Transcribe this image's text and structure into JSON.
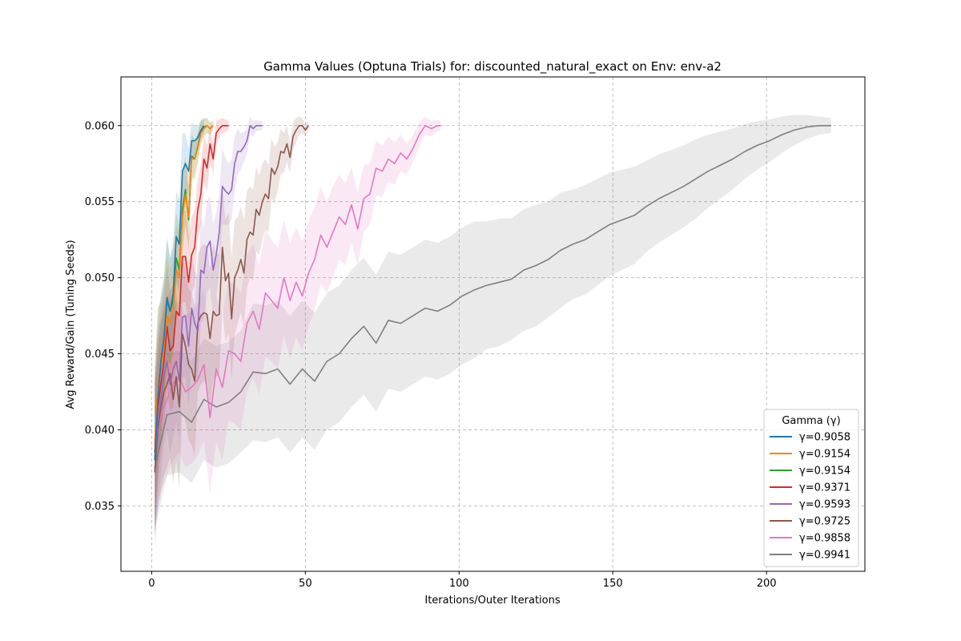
{
  "chart_data": {
    "type": "line",
    "title": "Gamma Values (Optuna Trials) for: discounted_natural_exact on Env: env-a2",
    "xlabel": "Iterations/Outer Iterations",
    "ylabel": "Avg Reward/Gain (Tuning Seeds)",
    "xlim": [
      -10,
      232
    ],
    "ylim": [
      0.0307,
      0.0632
    ],
    "xticks": [
      0,
      50,
      100,
      150,
      200
    ],
    "yticks": [
      0.035,
      0.04,
      0.045,
      0.05,
      0.055,
      0.06
    ],
    "ytick_labels": [
      "0.035",
      "0.040",
      "0.045",
      "0.050",
      "0.055",
      "0.060"
    ],
    "grid": true,
    "legend": {
      "title": "Gamma (γ)",
      "placement": "lower-right"
    },
    "series": [
      {
        "name": "γ=0.9058",
        "color": "#1f77b4",
        "x": [
          1,
          2,
          3,
          4,
          5,
          6,
          7,
          8,
          9,
          10,
          11,
          12,
          13,
          14,
          15,
          16,
          17
        ],
        "y": [
          0.038,
          0.042,
          0.0445,
          0.046,
          0.0487,
          0.0478,
          0.049,
          0.0527,
          0.0522,
          0.057,
          0.0575,
          0.057,
          0.059,
          0.059,
          0.0592,
          0.0597,
          0.06
        ],
        "band": [
          0.005,
          0.005,
          0.0045,
          0.004,
          0.004,
          0.0035,
          0.0035,
          0.003,
          0.003,
          0.0025,
          0.002,
          0.0015,
          0.0012,
          0.001,
          0.0008,
          0.0006,
          0.0005
        ]
      },
      {
        "name": "γ=0.9154",
        "color": "#ff7f0e",
        "x": [
          1,
          2,
          3,
          4,
          5,
          6,
          7,
          8,
          9,
          10,
          11,
          12,
          13,
          14,
          15,
          16,
          17,
          18,
          19,
          20
        ],
        "y": [
          0.039,
          0.043,
          0.044,
          0.0455,
          0.0475,
          0.047,
          0.048,
          0.0505,
          0.05,
          0.054,
          0.0555,
          0.054,
          0.0578,
          0.0578,
          0.0585,
          0.0595,
          0.0598,
          0.06,
          0.0598,
          0.06
        ],
        "band": [
          0.005,
          0.005,
          0.0045,
          0.004,
          0.004,
          0.0035,
          0.0035,
          0.003,
          0.003,
          0.0025,
          0.0022,
          0.002,
          0.0015,
          0.0012,
          0.001,
          0.0008,
          0.0006,
          0.0005,
          0.0004,
          0.0003
        ]
      },
      {
        "name": "γ=0.9154",
        "color": "#2ca02c",
        "x": [
          1,
          2,
          3,
          4,
          5,
          6,
          7,
          8,
          9,
          10,
          11,
          12,
          13,
          14,
          15,
          16,
          17,
          18,
          19,
          20
        ],
        "y": [
          0.039,
          0.043,
          0.044,
          0.046,
          0.0485,
          0.0478,
          0.0485,
          0.0513,
          0.0505,
          0.0545,
          0.0558,
          0.0538,
          0.058,
          0.0578,
          0.0586,
          0.0596,
          0.0599,
          0.06,
          0.0598,
          0.06
        ],
        "band": [
          0.005,
          0.005,
          0.0045,
          0.004,
          0.004,
          0.0035,
          0.0035,
          0.003,
          0.003,
          0.0025,
          0.0022,
          0.002,
          0.0015,
          0.0012,
          0.001,
          0.0008,
          0.0006,
          0.0005,
          0.0004,
          0.0003
        ]
      },
      {
        "name": "γ=0.9371",
        "color": "#d62728",
        "x": [
          1,
          2,
          3,
          4,
          5,
          6,
          7,
          8,
          9,
          10,
          11,
          12,
          13,
          14,
          15,
          16,
          17,
          18,
          19,
          20,
          21,
          22,
          23,
          24,
          25
        ],
        "y": [
          0.0385,
          0.0415,
          0.043,
          0.0445,
          0.0468,
          0.0452,
          0.0455,
          0.0478,
          0.0475,
          0.0514,
          0.0514,
          0.0497,
          0.0515,
          0.052,
          0.0545,
          0.0555,
          0.0578,
          0.0572,
          0.0588,
          0.0578,
          0.0595,
          0.0598,
          0.06,
          0.06,
          0.06
        ],
        "band": [
          0.005,
          0.005,
          0.0045,
          0.0045,
          0.004,
          0.004,
          0.004,
          0.0035,
          0.0035,
          0.003,
          0.003,
          0.003,
          0.0025,
          0.0025,
          0.002,
          0.002,
          0.0015,
          0.0015,
          0.0012,
          0.001,
          0.0008,
          0.0006,
          0.0005,
          0.0004,
          0.0003
        ]
      },
      {
        "name": "γ=0.9593",
        "color": "#9467bd",
        "x": [
          1,
          2,
          3,
          4,
          5,
          6,
          7,
          8,
          9,
          10,
          11,
          12,
          13,
          14,
          15,
          16,
          17,
          18,
          19,
          20,
          21,
          22,
          23,
          24,
          25,
          26,
          27,
          28,
          29,
          30,
          31,
          32,
          33,
          34,
          35,
          36
        ],
        "y": [
          0.038,
          0.0405,
          0.042,
          0.0435,
          0.0445,
          0.043,
          0.044,
          0.0445,
          0.0432,
          0.0474,
          0.0475,
          0.0455,
          0.048,
          0.047,
          0.0465,
          0.0505,
          0.0503,
          0.052,
          0.0524,
          0.0505,
          0.0515,
          0.053,
          0.056,
          0.0557,
          0.0555,
          0.0558,
          0.0575,
          0.0583,
          0.0583,
          0.0586,
          0.059,
          0.06,
          0.0598,
          0.06,
          0.06,
          0.06
        ],
        "band": [
          0.005,
          0.005,
          0.005,
          0.0045,
          0.0045,
          0.0045,
          0.0045,
          0.004,
          0.004,
          0.004,
          0.004,
          0.004,
          0.0035,
          0.0035,
          0.0035,
          0.0035,
          0.003,
          0.003,
          0.003,
          0.003,
          0.0028,
          0.0025,
          0.0025,
          0.0022,
          0.002,
          0.002,
          0.0018,
          0.0015,
          0.0012,
          0.001,
          0.0008,
          0.0006,
          0.0005,
          0.0004,
          0.0003,
          0.0003
        ]
      },
      {
        "name": "γ=0.9725",
        "color": "#8c564b",
        "x": [
          1,
          2,
          3,
          4,
          5,
          6,
          7,
          8,
          9,
          10,
          11,
          12,
          13,
          14,
          15,
          16,
          17,
          18,
          19,
          20,
          21,
          22,
          23,
          24,
          25,
          26,
          27,
          28,
          29,
          30,
          31,
          32,
          33,
          34,
          35,
          36,
          37,
          38,
          39,
          40,
          41,
          42,
          43,
          44,
          45,
          46,
          47,
          48,
          49,
          50,
          51
        ],
        "y": [
          0.0372,
          0.04,
          0.0415,
          0.0425,
          0.043,
          0.0437,
          0.042,
          0.0435,
          0.0415,
          0.0463,
          0.0455,
          0.0443,
          0.044,
          0.0432,
          0.047,
          0.0475,
          0.0477,
          0.0476,
          0.046,
          0.0478,
          0.0475,
          0.0476,
          0.052,
          0.0498,
          0.0503,
          0.0473,
          0.05,
          0.0505,
          0.0512,
          0.0503,
          0.0525,
          0.053,
          0.0528,
          0.0545,
          0.0541,
          0.055,
          0.0555,
          0.0552,
          0.0572,
          0.0568,
          0.0573,
          0.0583,
          0.0582,
          0.0588,
          0.0579,
          0.0593,
          0.0597,
          0.06,
          0.06,
          0.0597,
          0.06
        ],
        "band": [
          0.005,
          0.005,
          0.0055,
          0.0055,
          0.0055,
          0.0055,
          0.0055,
          0.0055,
          0.0055,
          0.005,
          0.005,
          0.005,
          0.005,
          0.005,
          0.0045,
          0.0045,
          0.0045,
          0.0045,
          0.0045,
          0.0045,
          0.004,
          0.004,
          0.004,
          0.004,
          0.004,
          0.004,
          0.0038,
          0.0035,
          0.0035,
          0.0035,
          0.0032,
          0.003,
          0.003,
          0.0028,
          0.0026,
          0.0025,
          0.0023,
          0.0022,
          0.002,
          0.0018,
          0.0016,
          0.0015,
          0.0013,
          0.0012,
          0.001,
          0.0009,
          0.0008,
          0.0006,
          0.0005,
          0.0004,
          0.0003
        ]
      },
      {
        "name": "γ=0.9858",
        "color": "#e377c2",
        "x": [
          1,
          3,
          5,
          7,
          9,
          11,
          13,
          15,
          17,
          19,
          21,
          23,
          25,
          27,
          29,
          31,
          33,
          35,
          37,
          39,
          41,
          43,
          45,
          47,
          49,
          51,
          53,
          55,
          57,
          59,
          61,
          63,
          65,
          67,
          69,
          71,
          73,
          75,
          77,
          79,
          81,
          83,
          85,
          87,
          89,
          91,
          93,
          94
        ],
        "y": [
          0.0382,
          0.041,
          0.042,
          0.043,
          0.0435,
          0.0425,
          0.0428,
          0.0433,
          0.0443,
          0.0408,
          0.044,
          0.0428,
          0.0452,
          0.045,
          0.0445,
          0.047,
          0.0478,
          0.0466,
          0.049,
          0.0485,
          0.048,
          0.05,
          0.0485,
          0.0497,
          0.0488,
          0.0503,
          0.0512,
          0.0528,
          0.052,
          0.053,
          0.054,
          0.0535,
          0.0548,
          0.0532,
          0.0552,
          0.0555,
          0.0572,
          0.057,
          0.0578,
          0.0575,
          0.0582,
          0.0578,
          0.0585,
          0.0594,
          0.06,
          0.0598,
          0.06,
          0.06
        ],
        "band": [
          0.005,
          0.005,
          0.005,
          0.005,
          0.005,
          0.005,
          0.005,
          0.005,
          0.005,
          0.005,
          0.0048,
          0.0048,
          0.0046,
          0.0046,
          0.0045,
          0.0045,
          0.0044,
          0.0043,
          0.0042,
          0.004,
          0.004,
          0.0038,
          0.0038,
          0.0036,
          0.0036,
          0.0035,
          0.0034,
          0.0032,
          0.003,
          0.003,
          0.0028,
          0.0027,
          0.0025,
          0.0024,
          0.0022,
          0.002,
          0.0018,
          0.0017,
          0.0015,
          0.0014,
          0.0012,
          0.001,
          0.0009,
          0.0008,
          0.0006,
          0.0005,
          0.0004,
          0.0003
        ]
      },
      {
        "name": "γ=0.9941",
        "color": "#7f7f7f",
        "x": [
          1,
          5,
          9,
          13,
          17,
          21,
          25,
          29,
          33,
          37,
          41,
          45,
          49,
          53,
          57,
          61,
          65,
          69,
          73,
          77,
          81,
          85,
          89,
          93,
          97,
          101,
          105,
          109,
          113,
          117,
          121,
          125,
          129,
          133,
          137,
          141,
          145,
          149,
          153,
          157,
          161,
          165,
          169,
          173,
          177,
          181,
          185,
          189,
          193,
          197,
          201,
          205,
          209,
          213,
          217,
          221
        ],
        "y": [
          0.0375,
          0.041,
          0.0412,
          0.0405,
          0.042,
          0.0415,
          0.0418,
          0.0425,
          0.0438,
          0.0437,
          0.044,
          0.043,
          0.044,
          0.0432,
          0.0445,
          0.045,
          0.046,
          0.0468,
          0.0457,
          0.0472,
          0.047,
          0.0475,
          0.048,
          0.0478,
          0.0482,
          0.0488,
          0.0492,
          0.0495,
          0.0497,
          0.0499,
          0.0505,
          0.0508,
          0.0512,
          0.0518,
          0.0522,
          0.0525,
          0.053,
          0.0535,
          0.0538,
          0.0541,
          0.0547,
          0.0552,
          0.0556,
          0.056,
          0.0565,
          0.057,
          0.0574,
          0.0578,
          0.0583,
          0.0587,
          0.059,
          0.0594,
          0.0597,
          0.0599,
          0.06,
          0.06
        ],
        "band": [
          0.004,
          0.004,
          0.004,
          0.004,
          0.004,
          0.004,
          0.004,
          0.004,
          0.0045,
          0.0045,
          0.0045,
          0.0045,
          0.0045,
          0.0045,
          0.0045,
          0.0045,
          0.0045,
          0.0045,
          0.0045,
          0.0045,
          0.0045,
          0.0045,
          0.0045,
          0.0045,
          0.0045,
          0.0045,
          0.0045,
          0.0042,
          0.0042,
          0.004,
          0.004,
          0.004,
          0.0038,
          0.0038,
          0.0036,
          0.0036,
          0.0035,
          0.0034,
          0.0033,
          0.0032,
          0.003,
          0.0029,
          0.0028,
          0.0027,
          0.0026,
          0.0024,
          0.0022,
          0.002,
          0.0018,
          0.0016,
          0.0014,
          0.0012,
          0.001,
          0.0008,
          0.0006,
          0.0005
        ]
      }
    ]
  }
}
